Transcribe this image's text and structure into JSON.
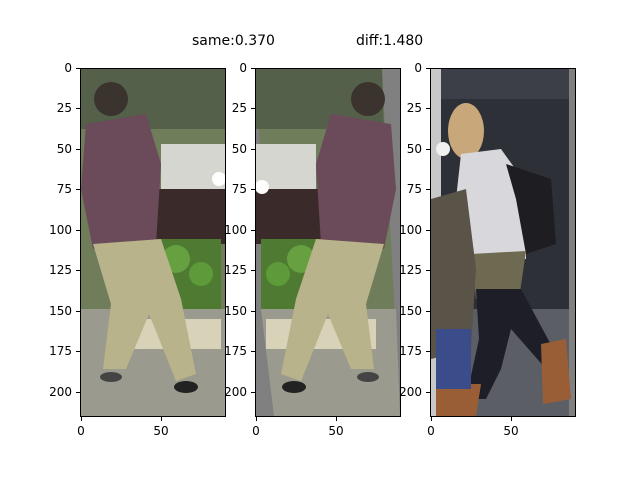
{
  "figure": {
    "title_same": "same:0.370",
    "title_diff": "diff:1.480"
  },
  "panels": [
    {
      "name": "query",
      "yticks": [
        "0",
        "25",
        "50",
        "75",
        "100",
        "125",
        "150",
        "175",
        "200"
      ],
      "xticks": [
        "0",
        "50"
      ],
      "colors": {
        "bg": "#6f7d5a",
        "shirt": "#6b4a5a",
        "pants": "#b8b38a",
        "plants": "#4e7a32",
        "floor": "#9a9a8e"
      }
    },
    {
      "name": "same",
      "yticks": [
        "0",
        "25",
        "50",
        "75",
        "100",
        "125",
        "150",
        "175",
        "200"
      ],
      "xticks": [
        "0",
        "50"
      ],
      "colors": {
        "bg": "#6f7d5a",
        "shirt": "#6b4a5a",
        "pants": "#b8b38a",
        "plants": "#4e7a32",
        "floor": "#9a9a8e"
      }
    },
    {
      "name": "diff",
      "yticks": [
        "0",
        "25",
        "50",
        "75",
        "100",
        "125",
        "150",
        "175",
        "200"
      ],
      "xticks": [
        "0",
        "50"
      ],
      "colors": {
        "bg": "#2e3038",
        "hair": "#c8a87a",
        "sweater": "#d8d8dc",
        "backpack": "#1e1e22",
        "jacket": "#6e6a52",
        "pants": "#1e1e28",
        "boots": "#9a5e36"
      }
    }
  ]
}
